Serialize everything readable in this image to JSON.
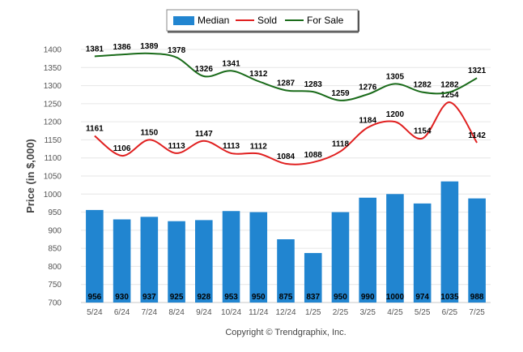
{
  "chart_data": {
    "type": "bar",
    "categories": [
      "5/24",
      "6/24",
      "7/24",
      "8/24",
      "9/24",
      "10/24",
      "11/24",
      "12/24",
      "1/25",
      "2/25",
      "3/25",
      "4/25",
      "5/25",
      "6/25",
      "7/25"
    ],
    "series": [
      {
        "name": "Median",
        "type": "bar",
        "color": "#2185d0",
        "values": [
          956,
          930,
          937,
          925,
          928,
          953,
          950,
          875,
          837,
          950,
          990,
          1000,
          974,
          1035,
          988
        ]
      },
      {
        "name": "Sold",
        "type": "line",
        "color": "#e02020",
        "values": [
          1161,
          1106,
          1150,
          1113,
          1147,
          1113,
          1112,
          1084,
          1088,
          1118,
          1184,
          1200,
          1154,
          1254,
          1142
        ]
      },
      {
        "name": "For Sale",
        "type": "line",
        "color": "#1a6b1a",
        "values": [
          1381,
          1386,
          1389,
          1378,
          1326,
          1341,
          1312,
          1287,
          1283,
          1259,
          1276,
          1305,
          1282,
          1282,
          1321
        ]
      }
    ],
    "ylabel": "Price (in $,000)",
    "xlabel": "",
    "ylim": [
      700,
      1400
    ],
    "yticks": [
      700,
      750,
      800,
      850,
      900,
      950,
      1000,
      1050,
      1100,
      1150,
      1200,
      1250,
      1300,
      1350,
      1400
    ],
    "grid": true,
    "legend_position": "top-center"
  },
  "copyright": "Copyright © Trendgraphix, Inc."
}
